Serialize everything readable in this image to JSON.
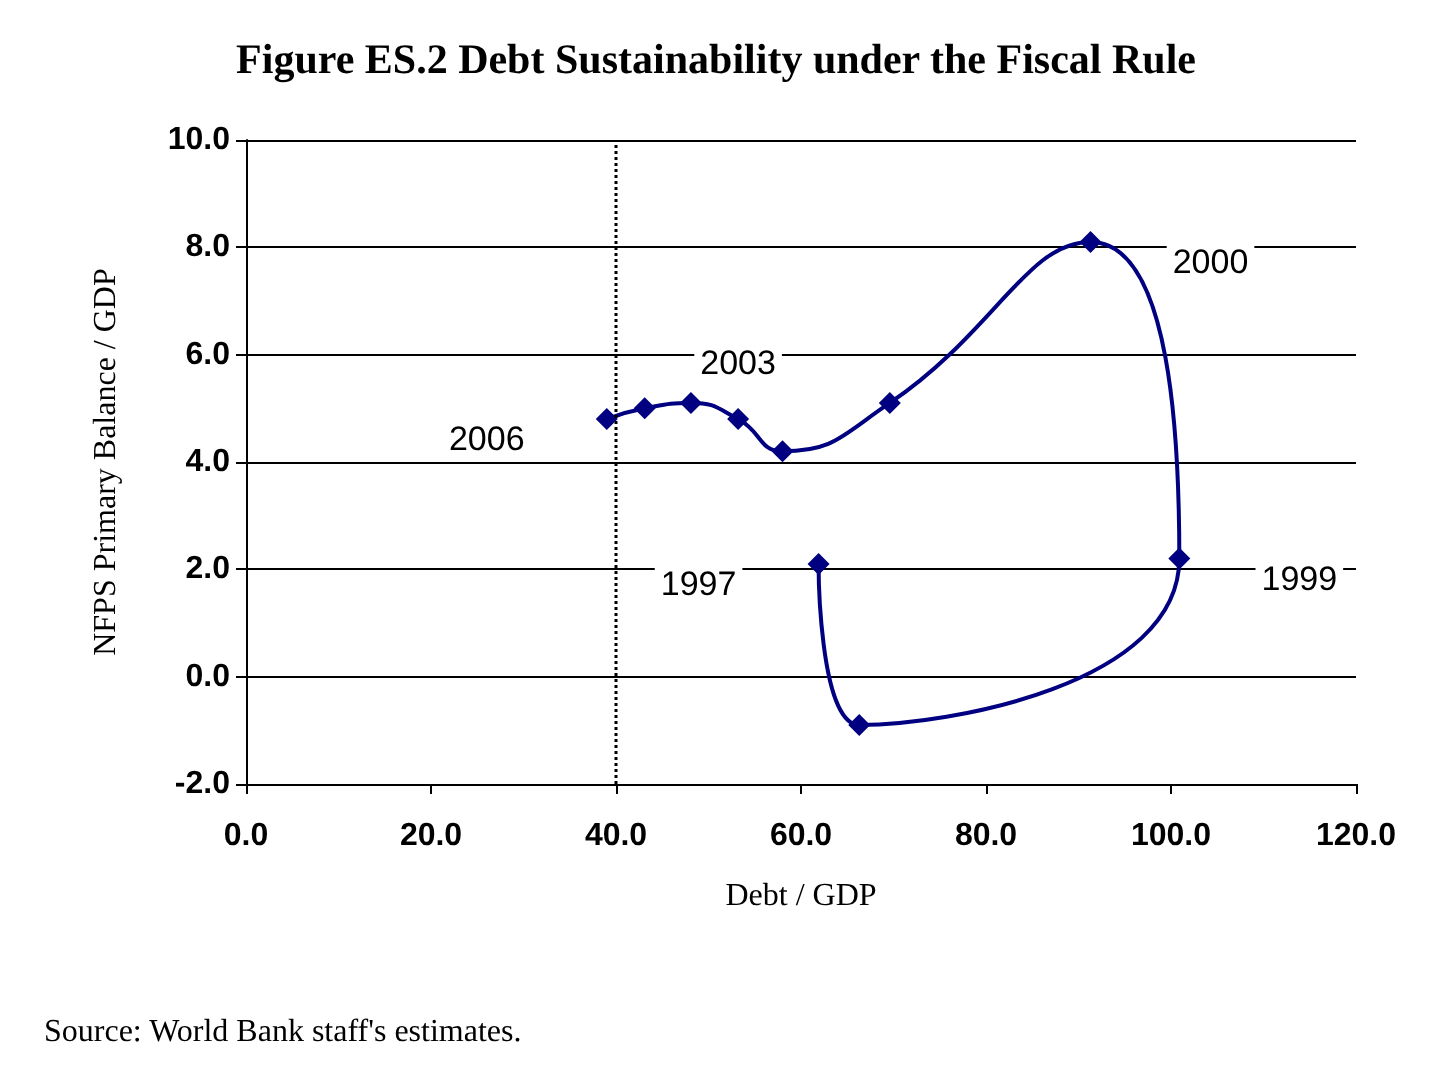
{
  "chart_data": {
    "type": "line",
    "title": "Figure ES.2 Debt Sustainability under the Fiscal Rule",
    "xlabel": "Debt / GDP",
    "ylabel": "NFPS Primary Balance / GDP",
    "series": [
      {
        "color": "#000080",
        "x": [
          61.9,
          66.3,
          100.9,
          91.3,
          69.6,
          58.0,
          53.2,
          48.1,
          43.1,
          39.0
        ],
        "values": [
          2.1,
          -0.9,
          2.2,
          8.1,
          5.1,
          4.2,
          4.8,
          5.1,
          5.0,
          4.8
        ]
      }
    ],
    "marker": "diamond",
    "line_style": "solid",
    "xlim": [
      0,
      120
    ],
    "xticks": [
      {
        "value": 0,
        "label": "0.0"
      },
      {
        "value": 20,
        "label": "20.0"
      },
      {
        "value": 40,
        "label": "40.0"
      },
      {
        "value": 60,
        "label": "60.0"
      },
      {
        "value": 80,
        "label": "80.0"
      },
      {
        "value": 100,
        "label": "100.0"
      },
      {
        "value": 120,
        "label": "120.0"
      }
    ],
    "ylim": [
      -2,
      10
    ],
    "yticks": [
      {
        "value": -2,
        "label": "-2.0"
      },
      {
        "value": 0,
        "label": "0.0"
      },
      {
        "value": 2,
        "label": "2.0"
      },
      {
        "value": 4,
        "label": "4.0"
      },
      {
        "value": 6,
        "label": "6.0"
      },
      {
        "value": 8,
        "label": "8.0"
      },
      {
        "value": 10,
        "label": "10.0"
      }
    ],
    "grid": "y",
    "ref_lines": [
      {
        "axis": "x",
        "value": 40,
        "line_style": "dotted",
        "color": "#000000"
      }
    ],
    "annotations": [
      {
        "text": "1997",
        "x": 61.9,
        "y": 2.1
      },
      {
        "text": "1999",
        "x": 100.9,
        "y": 2.2
      },
      {
        "text": "2000",
        "x": 91.3,
        "y": 8.1
      },
      {
        "text": "2003",
        "x": 53.2,
        "y": 4.8
      },
      {
        "text": "2006",
        "x": 39.0,
        "y": 4.8
      },
      "Source: World Bank staff's estimates."
    ]
  }
}
